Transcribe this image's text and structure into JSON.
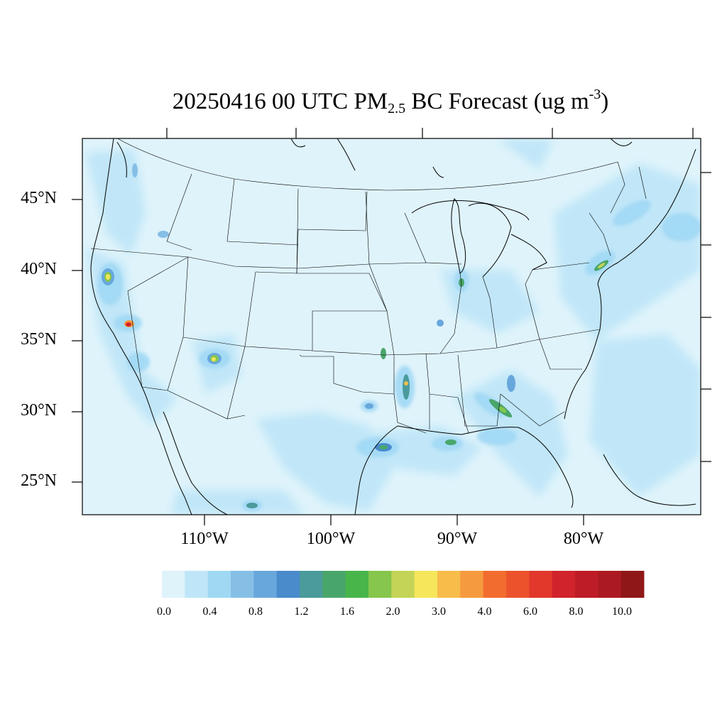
{
  "title": {
    "date_time": "20250416 00 UTC PM",
    "subscript": "2.5",
    "middle": " BC Forecast (ug m",
    "superscript": "-3",
    "end": ")"
  },
  "map": {
    "region": "CONUS",
    "projection": "lambert-conformal",
    "lat_labels": [
      "45°N",
      "40°N",
      "35°N",
      "30°N",
      "25°N"
    ],
    "lon_labels": [
      "110°W",
      "100°W",
      "90°W",
      "80°W"
    ],
    "background_color": "#dff3fb",
    "hotspots": [
      {
        "place": "Northern California",
        "level": "3.0"
      },
      {
        "place": "Southern California",
        "level": "8.0"
      },
      {
        "place": "Phoenix",
        "level": "3.0"
      },
      {
        "place": "Houston",
        "level": "1.6"
      },
      {
        "place": "Shreveport",
        "level": "3.0"
      },
      {
        "place": "Alabama",
        "level": "2.0"
      },
      {
        "place": "Chicago",
        "level": "1.6"
      },
      {
        "place": "New York",
        "level": "2.0"
      }
    ]
  },
  "colorbar": {
    "colors": [
      "#dff3fb",
      "#bfe6f8",
      "#a0d8f4",
      "#86bfe6",
      "#68a7dc",
      "#4a8bcc",
      "#4b9b9c",
      "#49a66b",
      "#48b54a",
      "#86c64c",
      "#c4d456",
      "#f5e65c",
      "#f7bc4a",
      "#f59a3e",
      "#f26c2f",
      "#ec532c",
      "#e1382b",
      "#d0232b",
      "#be1c26",
      "#ab1a22",
      "#901717"
    ],
    "labels": [
      "0.0",
      "0.4",
      "0.8",
      "1.2",
      "1.6",
      "2.0",
      "3.0",
      "4.0",
      "6.0",
      "8.0",
      "10.0"
    ]
  }
}
